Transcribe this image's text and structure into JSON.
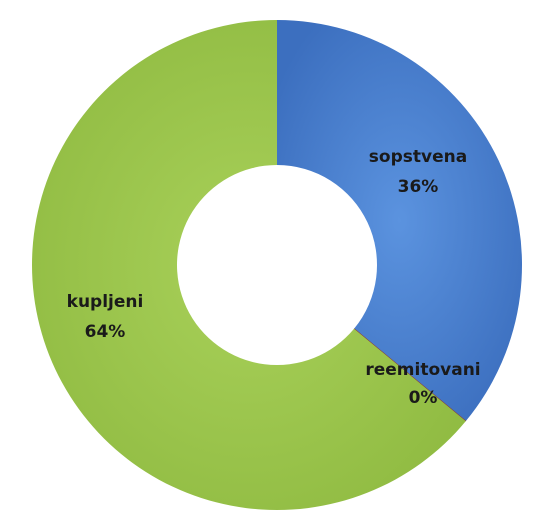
{
  "chart_data": {
    "type": "pie",
    "variant": "donut",
    "title": "",
    "slices": [
      {
        "name": "sopstvena",
        "value": 36,
        "label": "36%",
        "color": "#4a7fd0",
        "edge": "#2f5ea8"
      },
      {
        "name": "reemitovani",
        "value": 0,
        "label": "0%",
        "color": "#c0504d",
        "edge": "#8f3432"
      },
      {
        "name": "kupljeni",
        "value": 64,
        "label": "64%",
        "color": "#9bc64b",
        "edge": "#7fa935"
      }
    ],
    "legend": "none"
  }
}
